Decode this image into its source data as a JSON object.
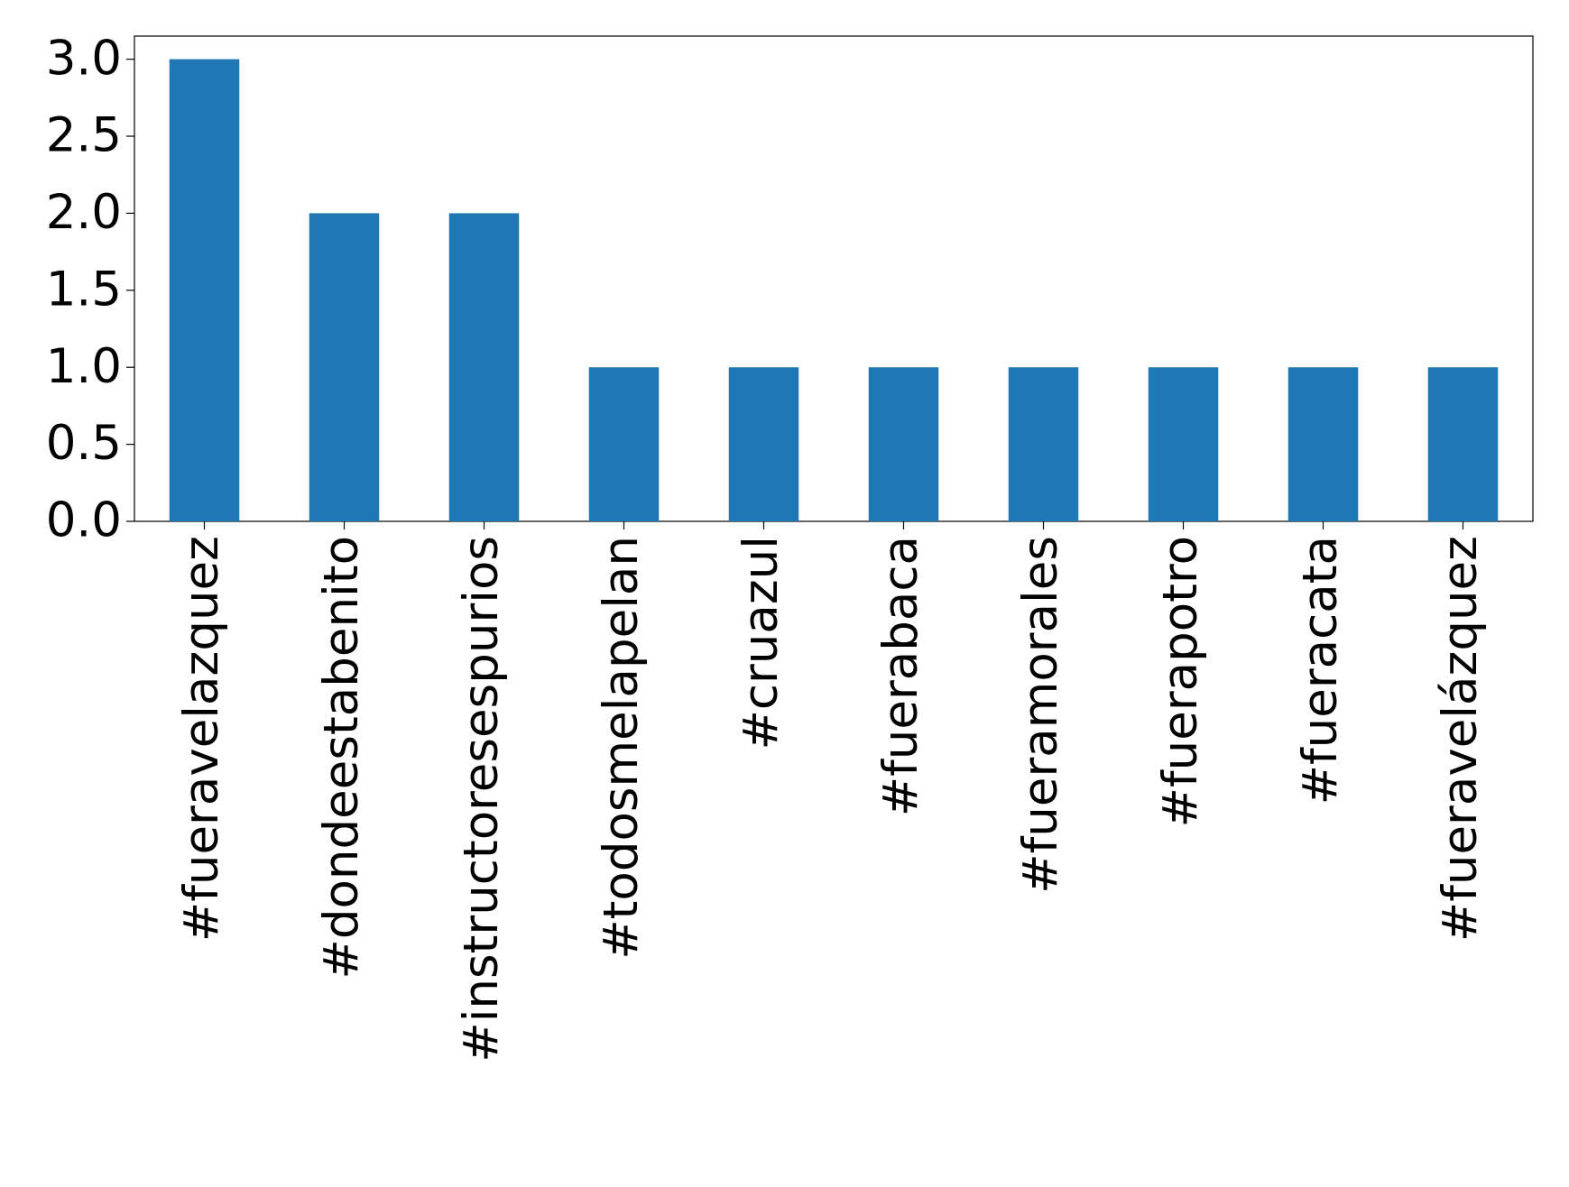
{
  "chart_data": {
    "type": "bar",
    "categories": [
      "#fueravelazquez",
      "#dondeestabenito",
      "#instructoresespurios",
      "#todosmelapelan",
      "#cruazul",
      "#fuerabaca",
      "#fueramorales",
      "#fuerapotro",
      "#fueracata",
      "#fueravelázquez"
    ],
    "values": [
      3,
      2,
      2,
      1,
      1,
      1,
      1,
      1,
      1,
      1
    ],
    "color": "#1f77b4",
    "ylim": [
      0,
      3.15
    ],
    "yticks": [
      {
        "value": 0,
        "label": "0.0"
      },
      0.5,
      {
        "value": 1,
        "label": "1.0"
      },
      1.5,
      {
        "value": 2,
        "label": "2.0"
      },
      2.5,
      {
        "value": 3,
        "label": "3.0"
      }
    ],
    "grid": false
  }
}
